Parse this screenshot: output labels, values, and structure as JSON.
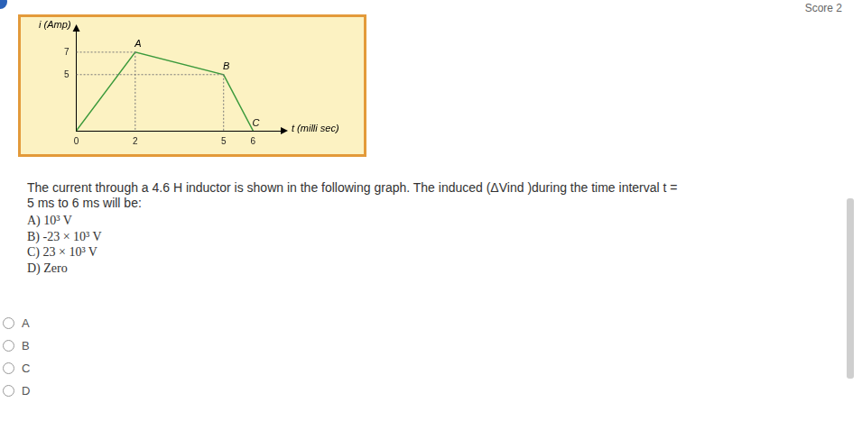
{
  "score": "Score 2",
  "chart_data": {
    "type": "line",
    "xlabel": "t (milli sec)",
    "ylabel": "i (Amp)",
    "x": [
      0,
      2,
      5,
      6
    ],
    "values": [
      0,
      7,
      5,
      0
    ],
    "color": "#3c9a3c",
    "annotations": [
      {
        "x": 2,
        "y": 7,
        "text": "A"
      },
      {
        "x": 5,
        "y": 5,
        "text": "B"
      },
      {
        "x": 6,
        "y": 0,
        "text": "C"
      }
    ],
    "xlim": [
      0,
      7
    ],
    "ylim": [
      0,
      9
    ],
    "xticks": [
      0,
      2,
      5,
      6
    ],
    "yticks": [
      5,
      7
    ],
    "grid": false
  },
  "question": {
    "lines": [
      "The current through a 4.6 H inductor is shown in the following graph. The induced (ΔVind )during the time interval t =",
      "5 ms to 6 ms will be:"
    ],
    "options": [
      "A) 10³ V",
      "B) -23 × 10³ V",
      "C) 23 × 10³ V",
      "D) Zero"
    ]
  },
  "answer_choices": [
    "A",
    "B",
    "C",
    "D"
  ]
}
